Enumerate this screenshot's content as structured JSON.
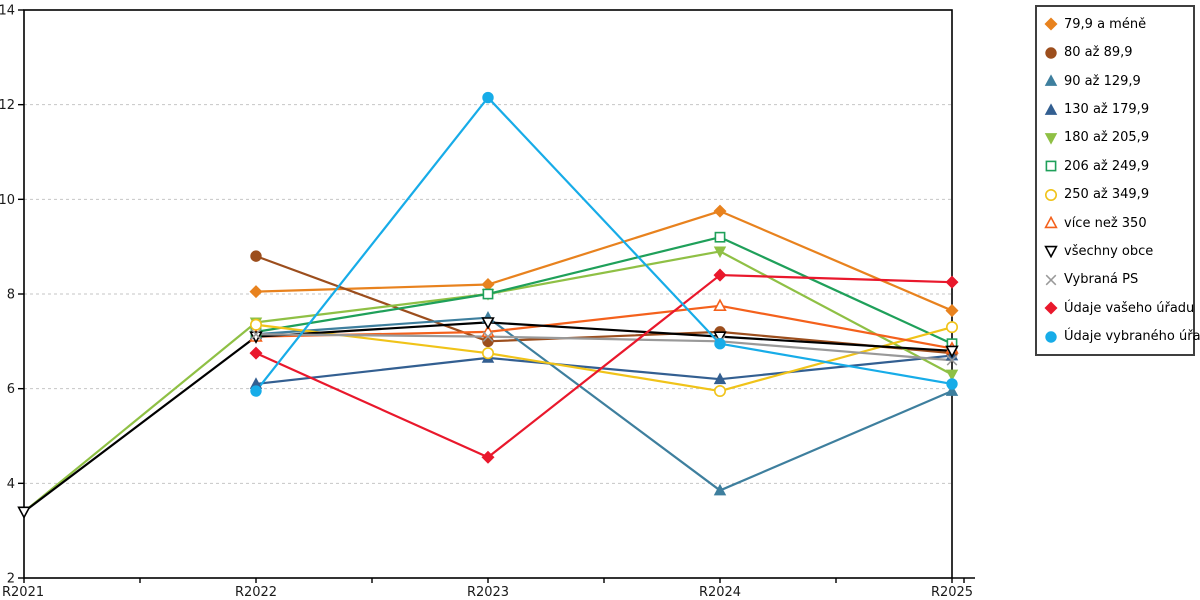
{
  "chart_data": {
    "type": "line",
    "title": "",
    "xlabel": "",
    "ylabel": "",
    "categories": [
      "R2021",
      "R2022",
      "R2023",
      "R2024",
      "R2025"
    ],
    "ylim": [
      2,
      14
    ],
    "yticks": [
      2,
      4,
      6,
      8,
      10,
      12,
      14
    ],
    "grid": "horizontal-dashed",
    "gridline_color": "#c6c6c6",
    "frame_color": "#000000",
    "legend_position": "right-outside",
    "series": [
      {
        "name": "79,9 a méně",
        "color": "#E8821E",
        "marker": "diamond",
        "filled": true,
        "values": [
          null,
          8.05,
          8.2,
          9.75,
          7.65
        ]
      },
      {
        "name": "80 až 89,9",
        "color": "#9C4E1D",
        "marker": "circle",
        "filled": true,
        "values": [
          null,
          8.8,
          7.0,
          7.2,
          6.75
        ]
      },
      {
        "name": "90 až 129,9",
        "color": "#3E7F9E",
        "marker": "triangle-up",
        "filled": true,
        "values": [
          null,
          7.15,
          7.5,
          3.85,
          5.95
        ]
      },
      {
        "name": "130 až 179,9",
        "color": "#335F91",
        "marker": "triangle-up",
        "filled": true,
        "values": [
          null,
          6.1,
          6.65,
          6.2,
          6.7
        ]
      },
      {
        "name": "180 až 205,9",
        "color": "#8FC045",
        "marker": "triangle-down",
        "filled": true,
        "values": [
          3.4,
          7.4,
          8.0,
          8.9,
          6.3
        ]
      },
      {
        "name": "206 až 249,9",
        "color": "#1FA05A",
        "marker": "square",
        "filled": false,
        "values": [
          null,
          7.2,
          8.0,
          9.2,
          6.95
        ]
      },
      {
        "name": "250 až 349,9",
        "color": "#F0C319",
        "marker": "circle",
        "filled": false,
        "values": [
          null,
          7.35,
          6.75,
          5.95,
          7.3
        ]
      },
      {
        "name": "více než 350",
        "color": "#F4611C",
        "marker": "triangle-up",
        "filled": false,
        "values": [
          null,
          7.1,
          7.2,
          7.75,
          6.85
        ]
      },
      {
        "name": "všechny obce",
        "color": "#000000",
        "marker": "triangle-down",
        "filled": false,
        "values": [
          3.4,
          7.1,
          7.4,
          7.1,
          6.8
        ]
      },
      {
        "name": "Vybraná PS",
        "color": "#999999",
        "marker": "x",
        "filled": false,
        "values": [
          null,
          7.15,
          7.1,
          7.0,
          6.6
        ]
      },
      {
        "name": "Údaje vašeho úřadu",
        "color": "#E9182C",
        "marker": "diamond",
        "filled": true,
        "values": [
          null,
          6.75,
          4.55,
          8.4,
          8.25
        ]
      },
      {
        "name": "Údaje vybraného úřadu",
        "color": "#17ACE8",
        "marker": "circle",
        "filled": true,
        "values": [
          null,
          5.95,
          12.15,
          6.95,
          6.1
        ]
      }
    ]
  }
}
